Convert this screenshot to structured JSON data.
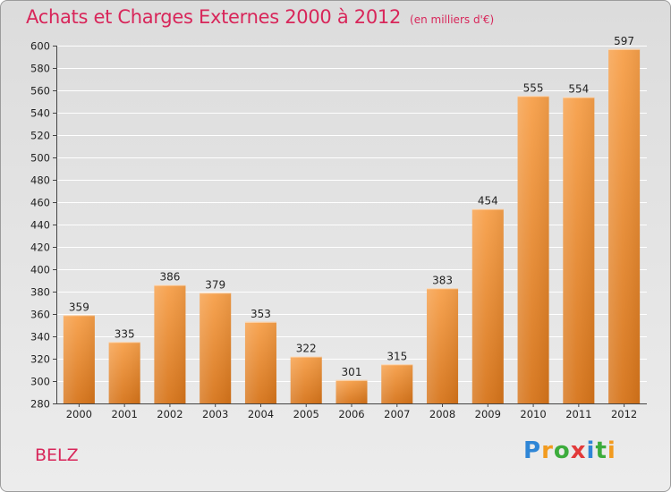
{
  "title": "Achats et Charges Externes 2000 à 2012",
  "unit": "(en milliers d'€)",
  "city": "BELZ",
  "logo": {
    "letters": [
      "P",
      "r",
      "o",
      "x",
      "i",
      "t",
      "i"
    ]
  },
  "colors": {
    "title": "#d8265a",
    "bar_light": "#f7a04a",
    "bar_dark": "#d6741a",
    "grid": "#ffffff"
  },
  "chart_data": {
    "type": "bar",
    "title": "Achats et Charges Externes 2000 à 2012",
    "xlabel": "",
    "ylabel": "",
    "categories": [
      "2000",
      "2001",
      "2002",
      "2003",
      "2004",
      "2005",
      "2006",
      "2007",
      "2008",
      "2009",
      "2010",
      "2011",
      "2012"
    ],
    "values": [
      359,
      335,
      386,
      379,
      353,
      322,
      301,
      315,
      383,
      454,
      555,
      554,
      597
    ],
    "ylim": [
      280,
      600
    ],
    "yticks": [
      280,
      300,
      320,
      340,
      360,
      380,
      400,
      420,
      440,
      460,
      480,
      500,
      520,
      540,
      560,
      580,
      600
    ],
    "grid": true
  }
}
